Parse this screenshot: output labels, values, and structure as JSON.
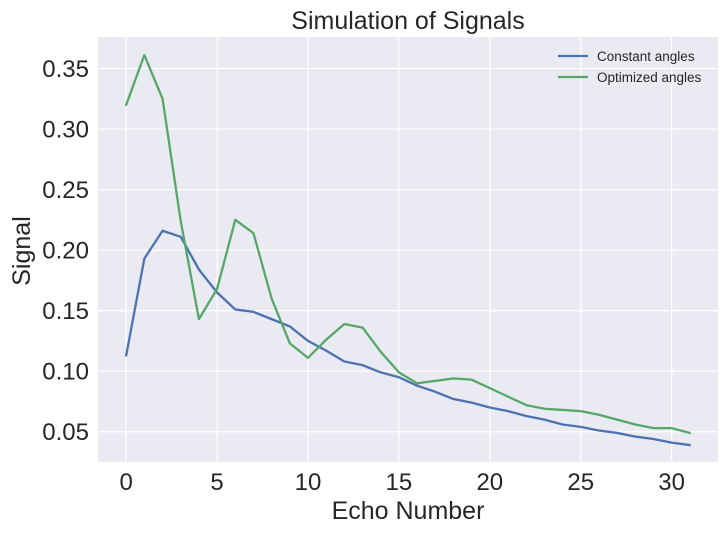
{
  "chart_data": {
    "type": "line",
    "title": "Simulation of Signals",
    "xlabel": "Echo Number",
    "ylabel": "Signal",
    "xlim": [
      -1.55,
      32.55
    ],
    "ylim": [
      0.025,
      0.376
    ],
    "xticks": [
      0,
      5,
      10,
      15,
      20,
      25,
      30
    ],
    "xtick_labels": [
      "0",
      "5",
      "10",
      "15",
      "20",
      "25",
      "30"
    ],
    "yticks": [
      0.05,
      0.1,
      0.15,
      0.2,
      0.25,
      0.3,
      0.35
    ],
    "ytick_labels": [
      "0.05",
      "0.10",
      "0.15",
      "0.20",
      "0.25",
      "0.30",
      "0.35"
    ],
    "grid": true,
    "legend_position": "top-right",
    "x": [
      0,
      1,
      2,
      3,
      4,
      5,
      6,
      7,
      8,
      9,
      10,
      11,
      12,
      13,
      14,
      15,
      16,
      17,
      18,
      19,
      20,
      21,
      22,
      23,
      24,
      25,
      26,
      27,
      28,
      29,
      30,
      31
    ],
    "series": [
      {
        "name": "Constant angles",
        "color": "#4c72b0",
        "values": [
          0.113,
          0.193,
          0.216,
          0.211,
          0.184,
          0.165,
          0.151,
          0.149,
          0.143,
          0.137,
          0.125,
          0.117,
          0.108,
          0.105,
          0.099,
          0.095,
          0.088,
          0.083,
          0.077,
          0.074,
          0.07,
          0.067,
          0.063,
          0.06,
          0.056,
          0.054,
          0.051,
          0.049,
          0.046,
          0.044,
          0.041,
          0.039
        ]
      },
      {
        "name": "Optimized angles",
        "color": "#55a868",
        "values": [
          0.32,
          0.361,
          0.325,
          0.224,
          0.143,
          0.168,
          0.225,
          0.214,
          0.16,
          0.123,
          0.111,
          0.126,
          0.139,
          0.136,
          0.116,
          0.099,
          0.09,
          0.092,
          0.094,
          0.093,
          0.086,
          0.079,
          0.072,
          0.069,
          0.068,
          0.067,
          0.064,
          0.06,
          0.056,
          0.053,
          0.053,
          0.049
        ]
      }
    ]
  }
}
